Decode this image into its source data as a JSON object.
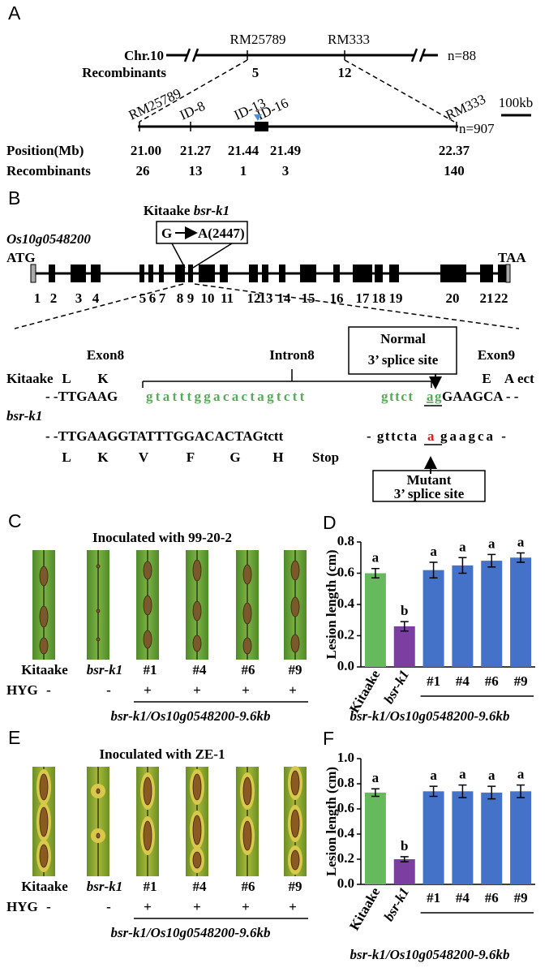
{
  "panel_a": {
    "label": "A",
    "chromosome": "Chr.10",
    "markers": [
      "RM25789",
      "RM333"
    ],
    "recombinants_label": "Recombinants",
    "recombinants": [
      "5",
      "12"
    ],
    "population": "n=88",
    "fine_markers": [
      "RM25789",
      "ID-8",
      "ID-13",
      "ID-16",
      "RM333"
    ],
    "scale_bar": "100kb",
    "fine_population": "n=907",
    "position_label": "Position(Mb)",
    "positions": [
      "21.00",
      "21.27",
      "21.44",
      "21.49",
      "22.37"
    ],
    "fine_recombinants_label": "Recombinants",
    "fine_recombinants": [
      "26",
      "13",
      "1",
      "3",
      "140"
    ]
  },
  "panel_b": {
    "label": "B",
    "cultivar": "Kitaake",
    "mutant": "bsr-k1",
    "mutation_from": "G",
    "mutation_to": "A(2447)",
    "gene": "Os10g0548200",
    "start_codon": "ATG",
    "stop_codon": "TAA",
    "exons": [
      "1",
      "2",
      "3",
      "4",
      "5",
      "6",
      "7",
      "8",
      "9",
      "10",
      "11",
      "12",
      "13",
      "14",
      "15",
      "16",
      "17",
      "18",
      "19",
      "20",
      "21",
      "22"
    ],
    "exon8": "Exon8",
    "intron8": "Intron8",
    "exon9": "Exon9",
    "normal_site": [
      "Normal",
      "3’ splice site"
    ],
    "mutant_site": [
      "Mutant",
      "3’ splice site"
    ],
    "wild_type_label": "Kitaake",
    "wild_type_aa_before": [
      "L",
      "K"
    ],
    "wild_type_aa_after": [
      "E",
      "A",
      "ect"
    ],
    "wild_type_seq": [
      "- -TTGAAG",
      "gtatttggacactagtctt",
      "gttct",
      "ag",
      "GAAGCA - -"
    ],
    "mutant_label": "bsr-k1",
    "mutant_seq": [
      "- -TTGAAGGTATTTGGACACTAGtctt",
      "- gttcta",
      "a",
      "gaagca -"
    ],
    "mutant_aa": [
      "L",
      "K",
      "V",
      "F",
      "G",
      "H",
      "Stop"
    ]
  },
  "panel_c": {
    "label": "C",
    "title": "Inoculated with 99-20-2",
    "lines": [
      "Kitaake",
      "bsr-k1",
      "#1",
      "#4",
      "#6",
      "#9"
    ],
    "hyg_label": "HYG",
    "hyg": [
      "-",
      "-",
      "+",
      "+",
      "+",
      "+"
    ],
    "group_label": "bsr-k1/Os10g0548200-9.6kb"
  },
  "panel_e": {
    "label": "E",
    "title": "Inoculated with ZE-1",
    "lines": [
      "Kitaake",
      "bsr-k1",
      "#1",
      "#4",
      "#6",
      "#9"
    ],
    "hyg_label": "HYG",
    "hyg": [
      "-",
      "-",
      "+",
      "+",
      "+",
      "+"
    ],
    "group_label": "bsr-k1/Os10g0548200-9.6kb"
  },
  "chart_data": [
    {
      "type": "bar",
      "panel": "D",
      "ylabel": "Lesion length (cm)",
      "categories": [
        "Kitaake",
        "bsr-k1",
        "#1",
        "#4",
        "#6",
        "#9"
      ],
      "values": [
        0.6,
        0.26,
        0.62,
        0.65,
        0.68,
        0.7
      ],
      "errors": [
        0.03,
        0.03,
        0.05,
        0.05,
        0.04,
        0.03
      ],
      "letters": [
        "a",
        "b",
        "a",
        "a",
        "a",
        "a"
      ],
      "colors": [
        "#66b95c",
        "#7b3ea1",
        "#4472c8",
        "#4472c8",
        "#4472c8",
        "#4472c8"
      ],
      "ylim": [
        0,
        0.8
      ],
      "yticks": [
        {
          "value": 0,
          "label": "0.0"
        },
        0.2,
        0.4,
        0.6,
        0.8
      ],
      "group_label": "bsr-k1/Os10g0548200-9.6kb"
    },
    {
      "type": "bar",
      "panel": "F",
      "ylabel": "Lesion length (cm)",
      "categories": [
        "Kitaake",
        "bsr-k1",
        "#1",
        "#4",
        "#6",
        "#9"
      ],
      "values": [
        0.73,
        0.2,
        0.74,
        0.74,
        0.73,
        0.74
      ],
      "errors": [
        0.03,
        0.02,
        0.04,
        0.05,
        0.05,
        0.05
      ],
      "letters": [
        "a",
        "b",
        "a",
        "a",
        "a",
        "a"
      ],
      "colors": [
        "#66b95c",
        "#7b3ea1",
        "#4472c8",
        "#4472c8",
        "#4472c8",
        "#4472c8"
      ],
      "ylim": [
        0,
        1
      ],
      "yticks": [
        {
          "value": 0,
          "label": "0.0"
        },
        0.2,
        0.4,
        0.6,
        0.8,
        {
          "value": 1,
          "label": "1.0"
        }
      ],
      "group_label": "bsr-k1/Os10g0548200-9.6kb"
    }
  ]
}
